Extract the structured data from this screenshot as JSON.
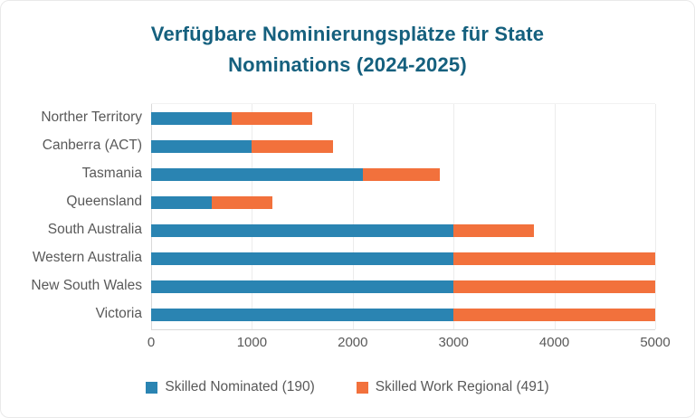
{
  "title": {
    "lines": [
      "Verfügbare Nominierungsplätze für State",
      "Nominations (2024-2025)"
    ],
    "color": "#15607E"
  },
  "colors": {
    "series_blue": "#2A84B2",
    "series_orange": "#F2713C",
    "text_gray": "#595959",
    "gridline": "#ececec",
    "axis_line": "#d9d9d9"
  },
  "chart_data": {
    "type": "bar",
    "orientation": "horizontal",
    "stacked": true,
    "title": "Verfügbare Nominierungsplätze für State Nominations (2024-2025)",
    "categories": [
      "Norther Territory",
      "Canberra (ACT)",
      "Tasmania",
      "Queensland",
      "South Australia",
      "Western Australia",
      "New South Wales",
      "Victoria"
    ],
    "series": [
      {
        "name": "Skilled Nominated (190)",
        "color": "#2A84B2",
        "values": [
          800,
          1000,
          2100,
          600,
          3000,
          3000,
          3000,
          3000
        ]
      },
      {
        "name": "Skilled Work Regional (491)",
        "color": "#F2713C",
        "values": [
          800,
          800,
          760,
          600,
          800,
          2000,
          2000,
          2000
        ]
      }
    ],
    "xlim": [
      0,
      5000
    ],
    "x_ticks": [
      0,
      1000,
      2000,
      3000,
      4000,
      5000
    ],
    "grid": true,
    "legend_position": "bottom"
  }
}
